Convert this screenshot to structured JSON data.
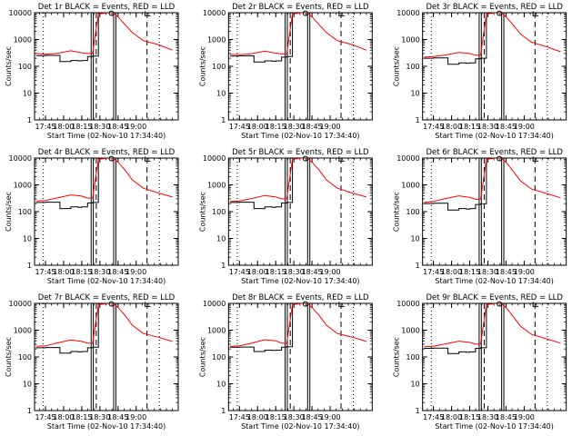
{
  "figure": {
    "rows": 3,
    "cols": 3
  },
  "chart_data": [
    {
      "type": "line",
      "title": "Det 1r BLACK = Events, RED = LLD",
      "xlabel": "Start Time (02-Nov-10 17:34:40)",
      "ylabel": "Counts/sec",
      "y_scale": "log",
      "ylim": [
        1,
        10000
      ],
      "xlim": [
        17.6,
        19.58
      ],
      "x_ticks": [
        "17:45",
        "18:00",
        "18:15",
        "18:30",
        "18:45",
        "19:00"
      ],
      "y_ticks": [
        "1",
        "10",
        "100",
        "1000",
        "10000"
      ],
      "grid": false,
      "legend": "in title",
      "series": [
        {
          "name": "Events",
          "color": "#000000",
          "x": [
            17.62,
            17.75,
            17.95,
            18.1,
            18.2,
            18.25,
            18.33,
            18.4,
            18.48,
            18.49,
            18.5,
            18.55,
            18.6,
            18.7,
            18.8,
            18.82,
            19.0,
            19.1,
            19.2,
            19.5
          ],
          "y": [
            250,
            255,
            150,
            165,
            160,
            165,
            230,
            240,
            10000,
            10000,
            10000,
            10000,
            10000,
            10000,
            10000,
            10000,
            10000,
            10000,
            10000,
            10000
          ]
        },
        {
          "name": "LLD",
          "color": "#ff0000",
          "x": [
            17.62,
            17.75,
            17.9,
            18.1,
            18.25,
            18.33,
            18.4,
            18.48,
            18.55,
            18.6,
            18.68,
            18.75,
            18.85,
            18.95,
            19.1,
            19.3,
            19.5
          ],
          "y": [
            300,
            280,
            300,
            380,
            320,
            300,
            300,
            9000,
            9500,
            10000,
            10000,
            7000,
            3500,
            1800,
            900,
            650,
            400
          ]
        }
      ],
      "markers": [
        {
          "x": 18.66,
          "y": 9500
        },
        {
          "x": 19.16,
          "y": 9000
        }
      ]
    },
    {
      "type": "line",
      "title": "Det 2r BLACK = Events, RED = LLD",
      "xlabel": "Start Time (02-Nov-10 17:34:40)",
      "ylabel": "Counts/sec",
      "y_scale": "log",
      "ylim": [
        1,
        10000
      ],
      "xlim": [
        17.6,
        19.58
      ],
      "x_ticks": [
        "17:45",
        "18:00",
        "18:15",
        "18:30",
        "18:45",
        "19:00"
      ],
      "y_ticks": [
        "1",
        "10",
        "100",
        "1000",
        "10000"
      ],
      "grid": false,
      "legend": "in title",
      "series": [
        {
          "name": "Events",
          "color": "#000000",
          "x": [
            17.62,
            17.75,
            17.95,
            18.1,
            18.2,
            18.25,
            18.33,
            18.4,
            18.48,
            18.5,
            18.6,
            18.8,
            19.0,
            19.5
          ],
          "y": [
            240,
            245,
            145,
            160,
            155,
            160,
            220,
            230,
            10000,
            10000,
            10000,
            10000,
            10000,
            10000
          ]
        },
        {
          "name": "LLD",
          "color": "#ff0000",
          "x": [
            17.62,
            17.75,
            17.9,
            18.1,
            18.25,
            18.33,
            18.4,
            18.48,
            18.55,
            18.6,
            18.68,
            18.75,
            18.85,
            18.95,
            19.1,
            19.3,
            19.5
          ],
          "y": [
            280,
            270,
            290,
            370,
            310,
            290,
            290,
            9000,
            9500,
            10000,
            10000,
            7000,
            3500,
            1800,
            900,
            650,
            400
          ]
        }
      ],
      "markers": [
        {
          "x": 18.66,
          "y": 9500
        },
        {
          "x": 19.16,
          "y": 9000
        }
      ]
    },
    {
      "type": "line",
      "title": "Det 3r BLACK = Events, RED = LLD",
      "xlabel": "Start Time (02-Nov-10 17:34:40)",
      "ylabel": "Counts/sec",
      "y_scale": "log",
      "ylim": [
        1,
        10000
      ],
      "xlim": [
        17.6,
        19.58
      ],
      "x_ticks": [
        "17:45",
        "18:00",
        "18:15",
        "18:30",
        "18:45",
        "19:00"
      ],
      "y_ticks": [
        "1",
        "10",
        "100",
        "1000",
        "10000"
      ],
      "grid": false,
      "legend": "in title",
      "series": [
        {
          "name": "Events",
          "color": "#000000",
          "x": [
            17.62,
            17.75,
            17.95,
            18.1,
            18.2,
            18.25,
            18.33,
            18.4,
            18.48,
            18.5,
            18.6,
            18.8,
            19.0,
            19.5
          ],
          "y": [
            200,
            205,
            120,
            135,
            130,
            135,
            190,
            200,
            10000,
            10000,
            10000,
            10000,
            10000,
            10000
          ]
        },
        {
          "name": "LLD",
          "color": "#ff0000",
          "x": [
            17.62,
            17.75,
            17.9,
            18.1,
            18.25,
            18.33,
            18.4,
            18.48,
            18.55,
            18.6,
            18.68,
            18.75,
            18.85,
            18.95,
            19.1,
            19.3,
            19.5
          ],
          "y": [
            220,
            230,
            260,
            330,
            300,
            260,
            260,
            9000,
            9500,
            10000,
            10000,
            7000,
            3500,
            1600,
            800,
            550,
            350
          ]
        }
      ],
      "markers": [
        {
          "x": 18.66,
          "y": 9500
        },
        {
          "x": 19.16,
          "y": 9000
        }
      ]
    },
    {
      "type": "line",
      "title": "Det 4r BLACK = Events, RED = LLD",
      "xlabel": "Start Time (02-Nov-10 17:34:40)",
      "ylabel": "Counts/sec",
      "y_scale": "log",
      "ylim": [
        1,
        10000
      ],
      "xlim": [
        17.6,
        19.58
      ],
      "x_ticks": [
        "17:45",
        "18:00",
        "18:15",
        "18:30",
        "18:45",
        "19:00"
      ],
      "y_ticks": [
        "1",
        "10",
        "100",
        "1000",
        "10000"
      ],
      "grid": false,
      "legend": "in title",
      "series": [
        {
          "name": "Events",
          "color": "#000000",
          "x": [
            17.62,
            17.75,
            17.95,
            18.1,
            18.2,
            18.25,
            18.33,
            18.4,
            18.48,
            18.5,
            18.6,
            18.8,
            19.0,
            19.5
          ],
          "y": [
            220,
            225,
            130,
            150,
            145,
            150,
            210,
            220,
            10000,
            10000,
            10000,
            10000,
            10000,
            10000
          ]
        },
        {
          "name": "LLD",
          "color": "#ff0000",
          "x": [
            17.62,
            17.75,
            17.9,
            18.1,
            18.25,
            18.33,
            18.4,
            18.48,
            18.55,
            18.6,
            18.68,
            18.75,
            18.85,
            18.95,
            19.1,
            19.3,
            19.5
          ],
          "y": [
            250,
            260,
            320,
            420,
            380,
            320,
            320,
            9000,
            9500,
            10000,
            10000,
            7000,
            3500,
            1500,
            750,
            500,
            350
          ]
        }
      ],
      "markers": [
        {
          "x": 18.66,
          "y": 9500
        },
        {
          "x": 19.16,
          "y": 9000
        }
      ]
    },
    {
      "type": "line",
      "title": "Det 5r BLACK = Events, RED = LLD",
      "xlabel": "Start Time (02-Nov-10 17:34:40)",
      "ylabel": "Counts/sec",
      "y_scale": "log",
      "ylim": [
        1,
        10000
      ],
      "xlim": [
        17.6,
        19.58
      ],
      "x_ticks": [
        "17:45",
        "18:00",
        "18:15",
        "18:30",
        "18:45",
        "19:00"
      ],
      "y_ticks": [
        "1",
        "10",
        "100",
        "1000",
        "10000"
      ],
      "grid": false,
      "legend": "in title",
      "series": [
        {
          "name": "Events",
          "color": "#000000",
          "x": [
            17.62,
            17.75,
            17.95,
            18.1,
            18.2,
            18.25,
            18.33,
            18.4,
            18.48,
            18.5,
            18.6,
            18.8,
            19.0,
            19.5
          ],
          "y": [
            220,
            225,
            130,
            150,
            145,
            150,
            210,
            220,
            10000,
            10000,
            10000,
            10000,
            10000,
            10000
          ]
        },
        {
          "name": "LLD",
          "color": "#ff0000",
          "x": [
            17.62,
            17.75,
            17.9,
            18.1,
            18.25,
            18.33,
            18.4,
            18.48,
            18.55,
            18.6,
            18.68,
            18.75,
            18.85,
            18.95,
            19.1,
            19.3,
            19.5
          ],
          "y": [
            240,
            250,
            300,
            400,
            350,
            300,
            300,
            9000,
            9500,
            10000,
            10000,
            7000,
            3500,
            1500,
            750,
            500,
            350
          ]
        }
      ],
      "markers": [
        {
          "x": 18.66,
          "y": 9500
        },
        {
          "x": 19.16,
          "y": 9000
        }
      ]
    },
    {
      "type": "line",
      "title": "Det 6r BLACK = Events, RED = LLD",
      "xlabel": "Start Time (02-Nov-10 17:34:40)",
      "ylabel": "Counts/sec",
      "y_scale": "log",
      "ylim": [
        1,
        10000
      ],
      "xlim": [
        17.6,
        19.58
      ],
      "x_ticks": [
        "17:45",
        "18:00",
        "18:15",
        "18:30",
        "18:45",
        "19:00"
      ],
      "y_ticks": [
        "1",
        "10",
        "100",
        "1000",
        "10000"
      ],
      "grid": false,
      "legend": "in title",
      "series": [
        {
          "name": "Events",
          "color": "#000000",
          "x": [
            17.62,
            17.75,
            17.95,
            18.1,
            18.2,
            18.25,
            18.33,
            18.4,
            18.48,
            18.5,
            18.6,
            18.8,
            19.0,
            19.5
          ],
          "y": [
            200,
            205,
            115,
            130,
            125,
            130,
            185,
            195,
            10000,
            10000,
            10000,
            10000,
            10000,
            10000
          ]
        },
        {
          "name": "LLD",
          "color": "#ff0000",
          "x": [
            17.62,
            17.75,
            17.9,
            18.1,
            18.25,
            18.33,
            18.4,
            18.48,
            18.55,
            18.6,
            18.68,
            18.75,
            18.85,
            18.95,
            19.1,
            19.3,
            19.5
          ],
          "y": [
            220,
            240,
            300,
            390,
            340,
            290,
            290,
            9000,
            9500,
            10000,
            10000,
            7000,
            3200,
            1400,
            700,
            480,
            330
          ]
        }
      ],
      "markers": [
        {
          "x": 18.66,
          "y": 9500
        },
        {
          "x": 19.16,
          "y": 9000
        }
      ]
    },
    {
      "type": "line",
      "title": "Det 7r BLACK = Events, RED = LLD",
      "xlabel": "Start Time (02-Nov-10 17:34:40)",
      "ylabel": "Counts/sec",
      "y_scale": "log",
      "ylim": [
        1,
        10000
      ],
      "xlim": [
        17.6,
        19.58
      ],
      "x_ticks": [
        "17:45",
        "18:00",
        "18:15",
        "18:30",
        "18:45",
        "19:00"
      ],
      "y_ticks": [
        "1",
        "10",
        "100",
        "1000",
        "10000"
      ],
      "grid": false,
      "legend": "in title",
      "series": [
        {
          "name": "Events",
          "color": "#000000",
          "x": [
            17.62,
            17.75,
            17.95,
            18.1,
            18.2,
            18.25,
            18.33,
            18.4,
            18.48,
            18.5,
            18.6,
            18.8,
            19.0,
            19.5
          ],
          "y": [
            220,
            225,
            140,
            160,
            155,
            160,
            220,
            230,
            10000,
            10000,
            10000,
            10000,
            10000,
            10000
          ]
        },
        {
          "name": "LLD",
          "color": "#ff0000",
          "x": [
            17.62,
            17.75,
            17.9,
            18.1,
            18.25,
            18.33,
            18.4,
            18.48,
            18.55,
            18.6,
            18.68,
            18.75,
            18.85,
            18.95,
            19.1,
            19.3,
            19.5
          ],
          "y": [
            250,
            260,
            330,
            430,
            380,
            330,
            320,
            9000,
            9500,
            10000,
            10000,
            7000,
            3500,
            1500,
            750,
            550,
            380
          ]
        }
      ],
      "markers": [
        {
          "x": 18.66,
          "y": 9500
        },
        {
          "x": 19.16,
          "y": 9000
        }
      ]
    },
    {
      "type": "line",
      "title": "Det 8r BLACK = Events, RED = LLD",
      "xlabel": "Start Time (02-Nov-10 17:34:40)",
      "ylabel": "Counts/sec",
      "y_scale": "log",
      "ylim": [
        1,
        10000
      ],
      "xlim": [
        17.6,
        19.58
      ],
      "x_ticks": [
        "17:45",
        "18:00",
        "18:15",
        "18:30",
        "18:45",
        "19:00"
      ],
      "y_ticks": [
        "1",
        "10",
        "100",
        "1000",
        "10000"
      ],
      "grid": false,
      "legend": "in title",
      "series": [
        {
          "name": "Events",
          "color": "#000000",
          "x": [
            17.62,
            17.75,
            17.95,
            18.1,
            18.2,
            18.25,
            18.33,
            18.4,
            18.48,
            18.5,
            18.6,
            18.8,
            19.0,
            19.5
          ],
          "y": [
            230,
            235,
            160,
            180,
            175,
            180,
            230,
            240,
            10000,
            10000,
            10000,
            10000,
            10000,
            10000
          ]
        },
        {
          "name": "LLD",
          "color": "#ff0000",
          "x": [
            17.62,
            17.75,
            17.9,
            18.1,
            18.25,
            18.33,
            18.4,
            18.48,
            18.55,
            18.6,
            18.68,
            18.75,
            18.85,
            18.95,
            19.1,
            19.3,
            19.5
          ],
          "y": [
            250,
            260,
            320,
            440,
            400,
            330,
            320,
            9000,
            9500,
            10000,
            10000,
            7000,
            3500,
            1500,
            750,
            550,
            380
          ]
        }
      ],
      "markers": [
        {
          "x": 18.66,
          "y": 9500
        },
        {
          "x": 19.16,
          "y": 9000
        }
      ]
    },
    {
      "type": "line",
      "title": "Det 9r BLACK = Events, RED = LLD",
      "xlabel": "Start Time (02-Nov-10 17:34:40)",
      "ylabel": "Counts/sec",
      "y_scale": "log",
      "ylim": [
        1,
        10000
      ],
      "xlim": [
        17.6,
        19.58
      ],
      "x_ticks": [
        "17:45",
        "18:00",
        "18:15",
        "18:30",
        "18:45",
        "19:00"
      ],
      "y_ticks": [
        "1",
        "10",
        "100",
        "1000",
        "10000"
      ],
      "grid": false,
      "legend": "in title",
      "series": [
        {
          "name": "Events",
          "color": "#000000",
          "x": [
            17.62,
            17.75,
            17.95,
            18.1,
            18.2,
            18.25,
            18.33,
            18.4,
            18.48,
            18.5,
            18.6,
            18.8,
            19.0,
            19.5
          ],
          "y": [
            210,
            215,
            135,
            155,
            150,
            155,
            210,
            220,
            10000,
            10000,
            10000,
            10000,
            10000,
            10000
          ]
        },
        {
          "name": "LLD",
          "color": "#ff0000",
          "x": [
            17.62,
            17.75,
            17.9,
            18.1,
            18.25,
            18.33,
            18.4,
            18.48,
            18.55,
            18.6,
            18.68,
            18.75,
            18.85,
            18.95,
            19.1,
            19.3,
            19.5
          ],
          "y": [
            240,
            250,
            300,
            390,
            350,
            300,
            300,
            9000,
            9500,
            10000,
            10000,
            7000,
            3200,
            1400,
            700,
            480,
            330
          ]
        }
      ],
      "markers": [
        {
          "x": 18.66,
          "y": 9500
        },
        {
          "x": 19.16,
          "y": 9000
        }
      ]
    }
  ],
  "vertical_markers": {
    "dotted": [
      17.72,
      19.32
    ],
    "solid": [
      18.38,
      18.41,
      18.69,
      18.72
    ],
    "dashed": [
      18.45,
      19.15
    ]
  }
}
